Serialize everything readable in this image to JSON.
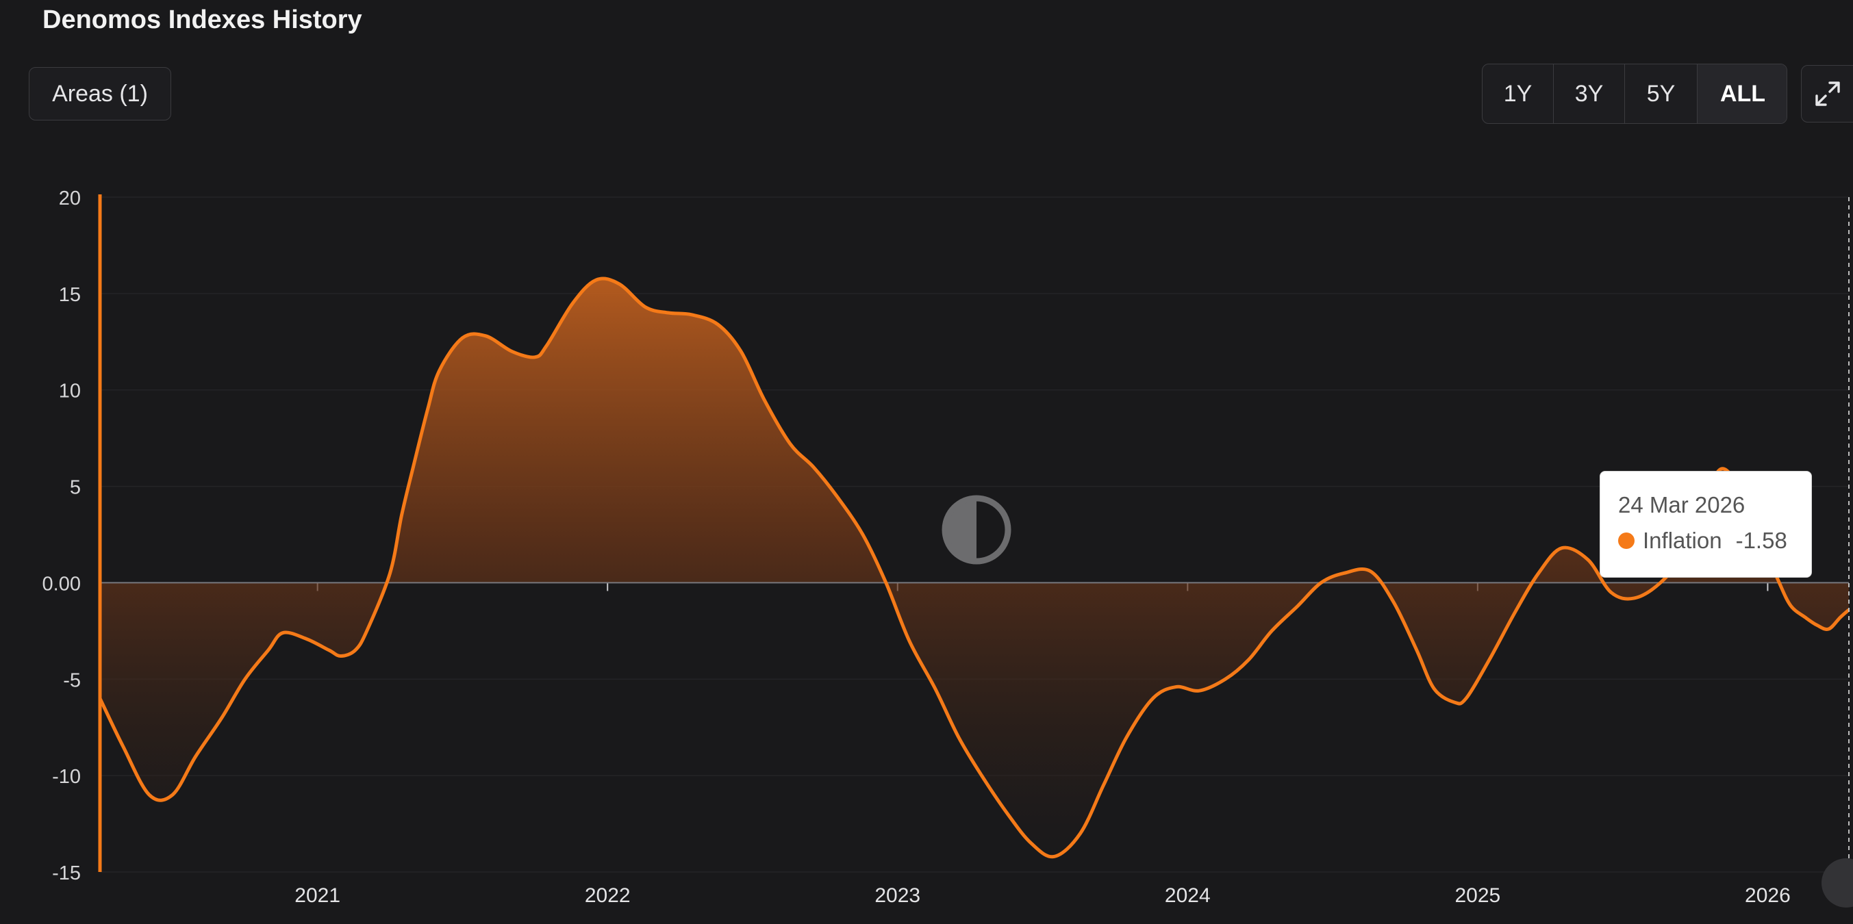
{
  "page": {
    "title": "Denomos Indexes History"
  },
  "controls": {
    "areas_label": "Areas (1)",
    "ranges": [
      "1Y",
      "3Y",
      "5Y",
      "ALL"
    ],
    "active_range": "ALL",
    "expand_icon": "expand-icon"
  },
  "tooltip": {
    "date": "24 Mar 2026",
    "series": "Inflation",
    "value": "-1.58"
  },
  "colors": {
    "line": "#f57a18",
    "fill_top": "#b4561c",
    "background": "#19191b",
    "tooltip_dot": "#f57a18"
  },
  "chart_data": {
    "type": "area",
    "ylim": [
      -15,
      20
    ],
    "y_ticks": [
      "20",
      "15",
      "10",
      "5",
      "0.00",
      "-5",
      "-10",
      "-15"
    ],
    "x_tick_labels": [
      "2021",
      "2022",
      "2023",
      "2024",
      "2025",
      "2026"
    ],
    "x_range": [
      2020.25,
      2026.28
    ],
    "grid": true,
    "series": [
      {
        "name": "Inflation",
        "points": [
          [
            2020.25,
            -6.0
          ],
          [
            2020.33,
            -8.5
          ],
          [
            2020.42,
            -11.0
          ],
          [
            2020.5,
            -11.0
          ],
          [
            2020.58,
            -9.0
          ],
          [
            2020.67,
            -7.0
          ],
          [
            2020.75,
            -5.0
          ],
          [
            2020.83,
            -3.5
          ],
          [
            2020.88,
            -2.6
          ],
          [
            2020.96,
            -2.9
          ],
          [
            2021.04,
            -3.5
          ],
          [
            2021.08,
            -3.8
          ],
          [
            2021.13,
            -3.5
          ],
          [
            2021.17,
            -2.5
          ],
          [
            2021.25,
            0.5
          ],
          [
            2021.29,
            3.5
          ],
          [
            2021.33,
            6.0
          ],
          [
            2021.38,
            9.0
          ],
          [
            2021.42,
            11.0
          ],
          [
            2021.5,
            12.7
          ],
          [
            2021.58,
            12.8
          ],
          [
            2021.67,
            12.0
          ],
          [
            2021.75,
            11.7
          ],
          [
            2021.79,
            12.3
          ],
          [
            2021.88,
            14.5
          ],
          [
            2021.96,
            15.7
          ],
          [
            2022.04,
            15.5
          ],
          [
            2022.13,
            14.3
          ],
          [
            2022.21,
            14.0
          ],
          [
            2022.29,
            13.9
          ],
          [
            2022.38,
            13.4
          ],
          [
            2022.46,
            12.0
          ],
          [
            2022.54,
            9.5
          ],
          [
            2022.63,
            7.2
          ],
          [
            2022.71,
            6.0
          ],
          [
            2022.79,
            4.5
          ],
          [
            2022.88,
            2.5
          ],
          [
            2022.96,
            0.0
          ],
          [
            2023.04,
            -3.0
          ],
          [
            2023.13,
            -5.5
          ],
          [
            2023.21,
            -8.0
          ],
          [
            2023.29,
            -10.0
          ],
          [
            2023.38,
            -12.0
          ],
          [
            2023.46,
            -13.5
          ],
          [
            2023.54,
            -14.2
          ],
          [
            2023.63,
            -13.0
          ],
          [
            2023.71,
            -10.5
          ],
          [
            2023.79,
            -8.0
          ],
          [
            2023.88,
            -6.0
          ],
          [
            2023.96,
            -5.4
          ],
          [
            2024.04,
            -5.6
          ],
          [
            2024.13,
            -5.0
          ],
          [
            2024.21,
            -4.0
          ],
          [
            2024.29,
            -2.5
          ],
          [
            2024.38,
            -1.2
          ],
          [
            2024.46,
            0.0
          ],
          [
            2024.54,
            0.5
          ],
          [
            2024.63,
            0.6
          ],
          [
            2024.71,
            -1.0
          ],
          [
            2024.79,
            -3.5
          ],
          [
            2024.85,
            -5.5
          ],
          [
            2024.92,
            -6.2
          ],
          [
            2024.96,
            -6.0
          ],
          [
            2025.04,
            -4.0
          ],
          [
            2025.13,
            -1.5
          ],
          [
            2025.21,
            0.5
          ],
          [
            2025.29,
            1.8
          ],
          [
            2025.38,
            1.2
          ],
          [
            2025.46,
            -0.5
          ],
          [
            2025.54,
            -0.8
          ],
          [
            2025.63,
            0.0
          ],
          [
            2025.71,
            1.5
          ],
          [
            2025.79,
            4.0
          ],
          [
            2025.83,
            5.8
          ],
          [
            2025.88,
            5.5
          ],
          [
            2025.96,
            3.5
          ],
          [
            2026.0,
            1.5
          ],
          [
            2026.04,
            0.0
          ],
          [
            2026.08,
            -1.2
          ],
          [
            2026.13,
            -1.8
          ],
          [
            2026.17,
            -2.2
          ],
          [
            2026.21,
            -2.4
          ],
          [
            2026.25,
            -1.8
          ],
          [
            2026.28,
            -1.4
          ]
        ]
      }
    ]
  }
}
